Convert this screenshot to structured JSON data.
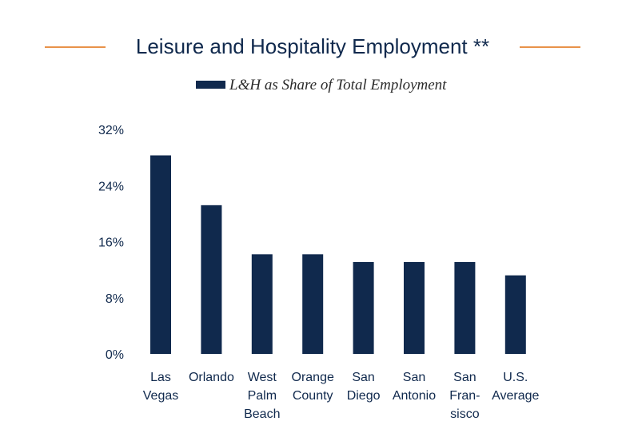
{
  "chart_data": {
    "type": "bar",
    "title": "Leisure and Hospitality Employment **",
    "series": [
      {
        "name": "L&H as Share of Total Employment",
        "values": [
          28.3,
          21.2,
          14.2,
          14.2,
          13.1,
          13.1,
          13.1,
          11.2
        ]
      }
    ],
    "categories": [
      [
        "Las",
        "Vegas"
      ],
      [
        "Orlando"
      ],
      [
        "West",
        "Palm",
        "Beach"
      ],
      [
        "Orange",
        "County"
      ],
      [
        "San",
        "Diego"
      ],
      [
        "San",
        "Antonio"
      ],
      [
        "San",
        "Fran-",
        "sisco"
      ],
      [
        "U.S.",
        "Average"
      ]
    ],
    "ylim": [
      0,
      32
    ],
    "yticks": [
      0,
      8,
      16,
      24,
      32
    ],
    "ytick_labels": [
      "0%",
      "8%",
      "16%",
      "24%",
      "32%"
    ],
    "legend_position": "top-center",
    "grid": false
  },
  "colors": {
    "bar": "#10294d",
    "title_rule": "#e8924a",
    "text": "#10294d"
  }
}
